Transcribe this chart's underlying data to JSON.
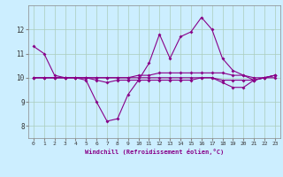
{
  "xlabel": "Windchill (Refroidissement éolien,°C)",
  "background_color": "#cceeff",
  "grid_color": "#aaccbb",
  "line_color": "#880088",
  "x_hours": [
    0,
    1,
    2,
    3,
    4,
    5,
    6,
    7,
    8,
    9,
    10,
    11,
    12,
    13,
    14,
    15,
    16,
    17,
    18,
    19,
    20,
    21,
    22,
    23
  ],
  "series1": [
    11.3,
    11.0,
    10.1,
    10.0,
    10.0,
    9.9,
    9.0,
    8.2,
    8.3,
    9.3,
    9.9,
    10.6,
    11.8,
    10.8,
    11.7,
    11.9,
    12.5,
    12.0,
    10.8,
    10.3,
    10.1,
    9.9,
    10.0,
    10.1
  ],
  "series2": [
    10.0,
    10.0,
    10.0,
    10.0,
    10.0,
    10.0,
    10.0,
    10.0,
    10.0,
    10.0,
    10.1,
    10.1,
    10.2,
    10.2,
    10.2,
    10.2,
    10.2,
    10.2,
    10.2,
    10.1,
    10.1,
    10.0,
    10.0,
    10.1
  ],
  "series3": [
    10.0,
    10.0,
    10.0,
    10.0,
    10.0,
    10.0,
    10.0,
    10.0,
    10.0,
    10.0,
    10.0,
    10.0,
    10.0,
    10.0,
    10.0,
    10.0,
    10.0,
    10.0,
    9.9,
    9.9,
    9.9,
    9.9,
    10.0,
    10.0
  ],
  "series4": [
    10.0,
    10.0,
    10.0,
    10.0,
    10.0,
    10.0,
    9.9,
    9.8,
    9.9,
    9.9,
    9.9,
    9.9,
    9.9,
    9.9,
    9.9,
    9.9,
    10.0,
    10.0,
    9.8,
    9.6,
    9.6,
    9.9,
    10.0,
    10.1
  ],
  "ylim": [
    7.5,
    13.0
  ],
  "yticks": [
    8,
    9,
    10,
    11,
    12
  ],
  "xlim": [
    -0.5,
    23.5
  ]
}
